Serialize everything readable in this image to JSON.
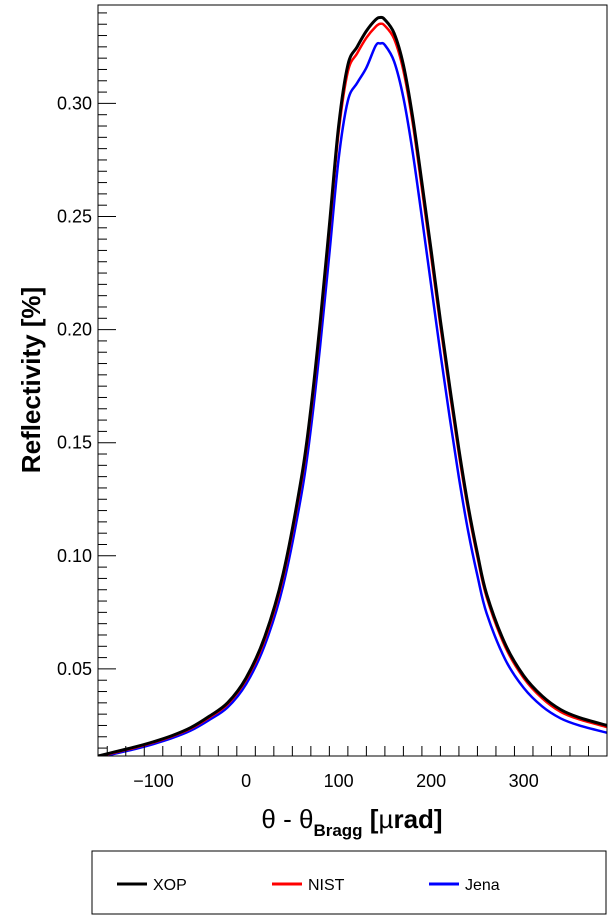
{
  "chart_data": {
    "type": "line",
    "title": "",
    "xlabel": {
      "main": "θ - θ",
      "sub": "Bragg",
      "unit_open": " [",
      "unit_mu": "µ",
      "unit_rest": "rad]"
    },
    "ylabel": "Reflectivity [%]",
    "xlim": [
      -160,
      390
    ],
    "ylim": [
      0.0115,
      0.3435
    ],
    "x_ticks": [
      -100,
      0,
      100,
      200,
      300
    ],
    "x_tick_labels": [
      "−100",
      "0",
      "100",
      "200",
      "300"
    ],
    "y_ticks": [
      0.05,
      0.1,
      0.15,
      0.2,
      0.25,
      0.3
    ],
    "y_tick_labels": [
      "0.05",
      "0.10",
      "0.15",
      "0.20",
      "0.25",
      "0.30"
    ],
    "grid": false,
    "legend_position": "bottom",
    "series": [
      {
        "name": "XOP",
        "color": "#000000",
        "x": [
          -160,
          -140,
          -120,
          -100,
          -80,
          -60,
          -40,
          -20,
          0,
          20,
          40,
          60,
          70,
          80,
          90,
          100,
          110,
          120,
          130,
          140,
          145,
          150,
          160,
          170,
          180,
          190,
          200,
          210,
          220,
          230,
          240,
          250,
          260,
          280,
          300,
          320,
          340,
          360,
          390
        ],
        "values": [
          0.0115,
          0.0135,
          0.0155,
          0.0178,
          0.0205,
          0.024,
          0.029,
          0.035,
          0.046,
          0.064,
          0.092,
          0.135,
          0.165,
          0.203,
          0.246,
          0.29,
          0.317,
          0.325,
          0.332,
          0.337,
          0.338,
          0.337,
          0.331,
          0.317,
          0.294,
          0.265,
          0.235,
          0.204,
          0.175,
          0.147,
          0.122,
          0.101,
          0.083,
          0.061,
          0.047,
          0.038,
          0.032,
          0.0285,
          0.025
        ]
      },
      {
        "name": "NIST",
        "color": "#ff0000",
        "x": [
          -160,
          -140,
          -120,
          -100,
          -80,
          -60,
          -40,
          -20,
          0,
          20,
          40,
          60,
          70,
          80,
          90,
          100,
          110,
          120,
          130,
          140,
          145,
          150,
          160,
          170,
          180,
          190,
          200,
          210,
          220,
          230,
          240,
          250,
          260,
          280,
          300,
          320,
          340,
          360,
          390
        ],
        "values": [
          0.0113,
          0.0132,
          0.0152,
          0.0175,
          0.0202,
          0.0236,
          0.0285,
          0.0344,
          0.0452,
          0.0628,
          0.0905,
          0.1332,
          0.1628,
          0.2008,
          0.2435,
          0.2872,
          0.3141,
          0.3221,
          0.329,
          0.3339,
          0.3352,
          0.3343,
          0.3285,
          0.3145,
          0.2915,
          0.2623,
          0.2323,
          0.2016,
          0.1727,
          0.1449,
          0.1202,
          0.0995,
          0.0817,
          0.0598,
          0.046,
          0.037,
          0.031,
          0.0277,
          0.0243
        ]
      },
      {
        "name": "Jena",
        "color": "#0000ff",
        "x": [
          -160,
          -140,
          -120,
          -100,
          -80,
          -60,
          -40,
          -20,
          0,
          20,
          40,
          60,
          70,
          80,
          90,
          100,
          110,
          120,
          130,
          140,
          145,
          150,
          160,
          170,
          180,
          190,
          200,
          210,
          220,
          230,
          240,
          250,
          260,
          280,
          300,
          320,
          340,
          360,
          390
        ],
        "values": [
          0.0108,
          0.0127,
          0.0146,
          0.0168,
          0.0194,
          0.0227,
          0.0274,
          0.033,
          0.0433,
          0.0603,
          0.0868,
          0.1276,
          0.1562,
          0.1926,
          0.2335,
          0.2755,
          0.3012,
          0.309,
          0.3158,
          0.3255,
          0.3265,
          0.3258,
          0.3185,
          0.3025,
          0.2785,
          0.2495,
          0.2195,
          0.1895,
          0.1612,
          0.1345,
          0.1108,
          0.0912,
          0.0745,
          0.0542,
          0.0416,
          0.0334,
          0.0281,
          0.025,
          0.0218
        ]
      }
    ]
  }
}
